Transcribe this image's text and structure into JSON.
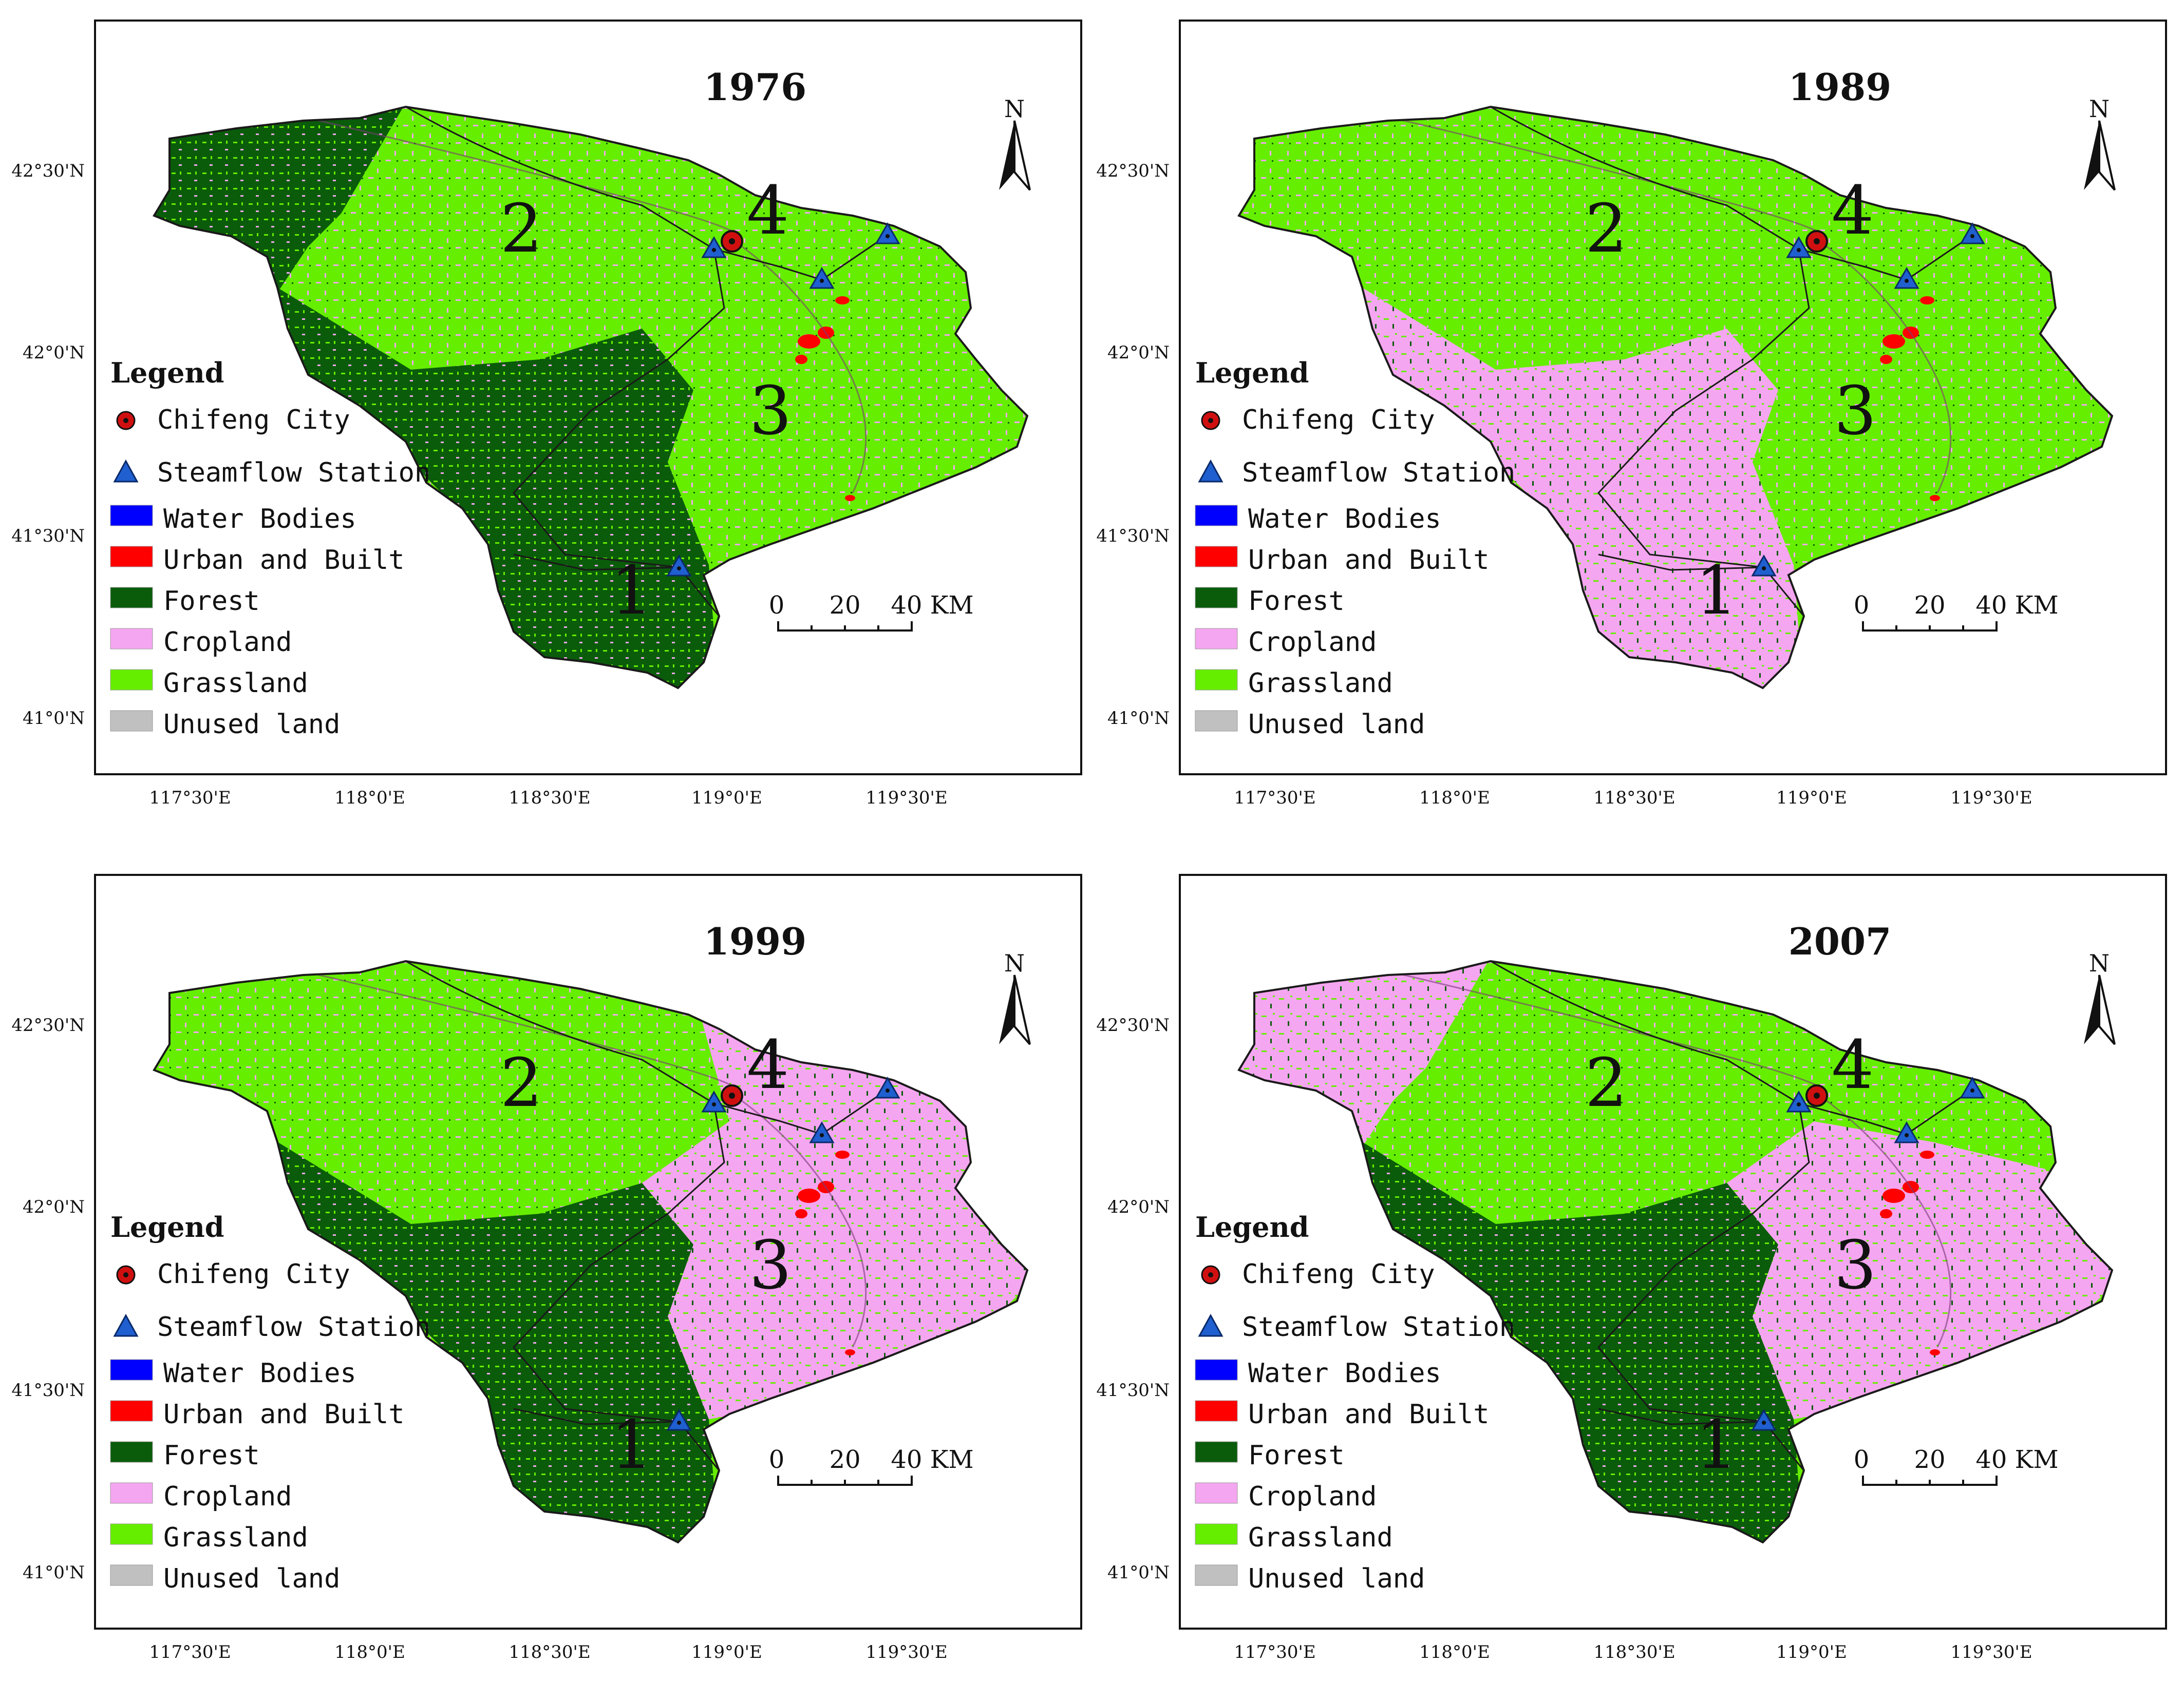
{
  "colors": {
    "water": "#0000ff",
    "urban": "#ff0000",
    "forest": "#0a5c0a",
    "cropland": "#f5a6f0",
    "grassland": "#66ee00",
    "unused": "#c0c0c0",
    "station": "#1f5fcf",
    "city": "#d01010",
    "boundary": "#1a1a1a"
  },
  "north_label": "N",
  "latitude_labels": [
    "42°30'N",
    "42°0'N",
    "41°30'N",
    "41°0'N"
  ],
  "longitude_labels": [
    "117°30'E",
    "118°0'E",
    "118°30'E",
    "119°0'E",
    "119°30'E"
  ],
  "legend": {
    "title": "Legend",
    "items": [
      {
        "label": "Chifeng City",
        "symbol": "city-marker"
      },
      {
        "label": "Steamflow Station",
        "symbol": "station-triangle"
      },
      {
        "label": "Water Bodies",
        "color_key": "water"
      },
      {
        "label": "Urban and Built",
        "color_key": "urban"
      },
      {
        "label": "Forest",
        "color_key": "forest"
      },
      {
        "label": "Cropland",
        "color_key": "cropland"
      },
      {
        "label": "Grassland",
        "color_key": "grassland"
      },
      {
        "label": "Unused land",
        "color_key": "unused"
      }
    ]
  },
  "scale_bar": {
    "labels": [
      "0",
      "20",
      "40 KM"
    ]
  },
  "subbasin_labels": [
    "1",
    "2",
    "3",
    "4"
  ],
  "panels": [
    {
      "year": "1976",
      "dominant_zones": {
        "nw": "forest",
        "north": "grassland",
        "sw": "forest",
        "se": "grassland",
        "ne": "grassland"
      }
    },
    {
      "year": "1989",
      "dominant_zones": {
        "nw": "grassland",
        "north": "grassland",
        "sw": "cropland",
        "se": "grassland",
        "ne": "grassland"
      }
    },
    {
      "year": "1999",
      "dominant_zones": {
        "nw": "grassland",
        "north": "grassland",
        "sw": "forest",
        "se": "cropland",
        "ne": "cropland"
      }
    },
    {
      "year": "2007",
      "dominant_zones": {
        "nw": "cropland",
        "north": "grassland",
        "sw": "forest",
        "se": "cropland",
        "ne": "grassland"
      }
    }
  ]
}
